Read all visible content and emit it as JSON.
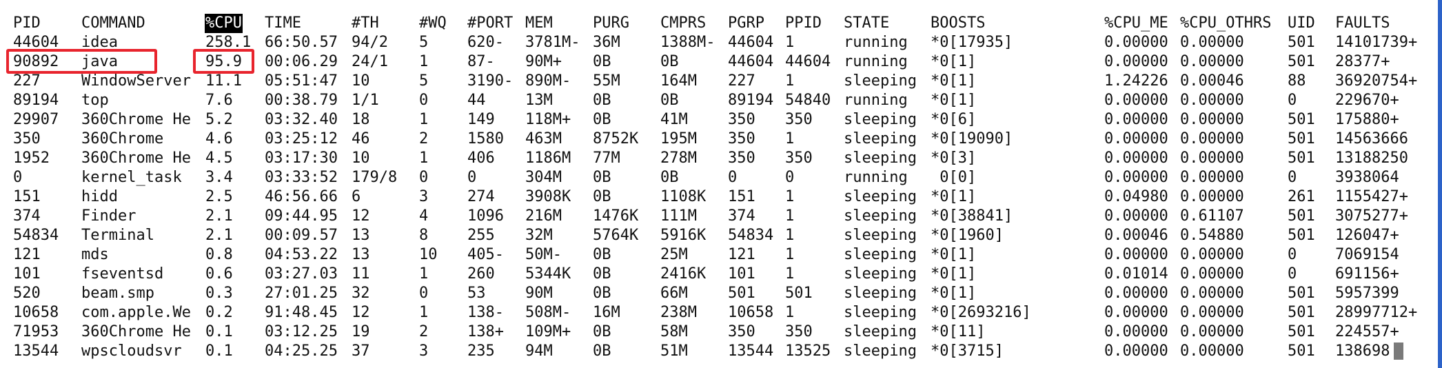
{
  "columns": [
    "PID",
    "COMMAND",
    "%CPU",
    "TIME",
    "#TH",
    "#WQ",
    "#PORT",
    "MEM",
    "PURG",
    "CMPRS",
    "PGRP",
    "PPID",
    "STATE",
    "BOOSTS",
    "%CPU_ME",
    "%CPU_OTHRS",
    "UID",
    "FAULTS"
  ],
  "sorted_column": "%CPU",
  "colors": {
    "highlight_box": "#e8242d",
    "sorted_header_bg": "#000000",
    "sorted_header_fg": "#ffffff",
    "cursor": "#7a7a7a",
    "window_edge": "#2d63c9"
  },
  "rows": [
    [
      "44604",
      "idea",
      "258.1",
      "66:50.57",
      "94/2",
      "5",
      "620-",
      "3781M-",
      "36M",
      "1388M-",
      "44604",
      "1",
      "running",
      "*0[17935]",
      "0.00000",
      "0.00000",
      "501",
      "14101739+"
    ],
    [
      "90892",
      "java",
      "95.9",
      "00:06.29",
      "24/1",
      "1",
      "87-",
      "90M+",
      "0B",
      "0B",
      "44604",
      "44604",
      "running",
      "*0[1]",
      "0.00000",
      "0.00000",
      "501",
      "28377+"
    ],
    [
      "227",
      "WindowServer",
      "11.1",
      "05:51:47",
      "10",
      "5",
      "3190-",
      "890M-",
      "55M",
      "164M",
      "227",
      "1",
      "sleeping",
      "*0[1]",
      "1.24226",
      "0.00046",
      "88",
      "36920754+"
    ],
    [
      "89194",
      "top",
      "7.6",
      "00:38.79",
      "1/1",
      "0",
      "44",
      "13M",
      "0B",
      "0B",
      "89194",
      "54840",
      "running",
      "*0[1]",
      "0.00000",
      "0.00000",
      "0",
      "229670+"
    ],
    [
      "29907",
      "360Chrome He",
      "5.2",
      "03:32.40",
      "18",
      "1",
      "149",
      "118M+",
      "0B",
      "41M",
      "350",
      "350",
      "sleeping",
      "*0[6]",
      "0.00000",
      "0.00000",
      "501",
      "175880+"
    ],
    [
      "350",
      "360Chrome",
      "4.6",
      "03:25:12",
      "46",
      "2",
      "1580",
      "463M",
      "8752K",
      "195M",
      "350",
      "1",
      "sleeping",
      "*0[19090]",
      "0.00000",
      "0.00000",
      "501",
      "14563666"
    ],
    [
      "1952",
      "360Chrome He",
      "4.5",
      "03:17:30",
      "10",
      "1",
      "406",
      "1186M",
      "77M",
      "278M",
      "350",
      "350",
      "sleeping",
      "*0[3]",
      "0.00000",
      "0.00000",
      "501",
      "13188250"
    ],
    [
      "0",
      "kernel_task",
      "3.4",
      "03:33:52",
      "179/8",
      "0",
      "0",
      "304M",
      "0B",
      "0B",
      "0",
      "0",
      "running",
      " 0[0]",
      "0.00000",
      "0.00000",
      "0",
      "3938064"
    ],
    [
      "151",
      "hidd",
      "2.5",
      "46:56.66",
      "6",
      "3",
      "274",
      "3908K",
      "0B",
      "1108K",
      "151",
      "1",
      "sleeping",
      "*0[1]",
      "0.04980",
      "0.00000",
      "261",
      "1155427+"
    ],
    [
      "374",
      "Finder",
      "2.1",
      "09:44.95",
      "12",
      "4",
      "1096",
      "216M",
      "1476K",
      "111M",
      "374",
      "1",
      "sleeping",
      "*0[38841]",
      "0.00000",
      "0.61107",
      "501",
      "3075277+"
    ],
    [
      "54834",
      "Terminal",
      "2.1",
      "00:09.57",
      "13",
      "8",
      "255",
      "32M",
      "5764K",
      "5916K",
      "54834",
      "1",
      "sleeping",
      "*0[1960]",
      "0.00046",
      "0.54880",
      "501",
      "126047+"
    ],
    [
      "121",
      "mds",
      "0.8",
      "04:53.22",
      "13",
      "10",
      "405-",
      "50M-",
      "0B",
      "25M",
      "121",
      "1",
      "sleeping",
      "*0[1]",
      "0.00000",
      "0.00000",
      "0",
      "7069154"
    ],
    [
      "101",
      "fseventsd",
      "0.6",
      "03:27.03",
      "11",
      "1",
      "260",
      "5344K",
      "0B",
      "2416K",
      "101",
      "1",
      "sleeping",
      "*0[1]",
      "0.01014",
      "0.00000",
      "0",
      "691156+"
    ],
    [
      "520",
      "beam.smp",
      "0.3",
      "27:01.25",
      "32",
      "0",
      "53",
      "90M",
      "0B",
      "66M",
      "501",
      "501",
      "sleeping",
      "*0[1]",
      "0.00000",
      "0.00000",
      "501",
      "5957399"
    ],
    [
      "10658",
      "com.apple.We",
      "0.2",
      "91:48.45",
      "12",
      "1",
      "138-",
      "508M-",
      "16M",
      "238M",
      "10658",
      "1",
      "sleeping",
      "*0[2693216]",
      "0.00000",
      "0.00000",
      "501",
      "28997712+"
    ],
    [
      "71953",
      "360Chrome He",
      "0.1",
      "03:12.25",
      "19",
      "2",
      "138+",
      "109M+",
      "0B",
      "58M",
      "350",
      "350",
      "sleeping",
      "*0[11]",
      "0.00000",
      "0.00000",
      "501",
      "224557+"
    ],
    [
      "13544",
      "wpscloudsvr",
      "0.1",
      "04:25.25",
      "37",
      "3",
      "235",
      "94M",
      "0B",
      "51M",
      "13544",
      "13525",
      "sleeping",
      "*0[3715]",
      "0.00000",
      "0.00000",
      "501",
      "138698"
    ]
  ]
}
